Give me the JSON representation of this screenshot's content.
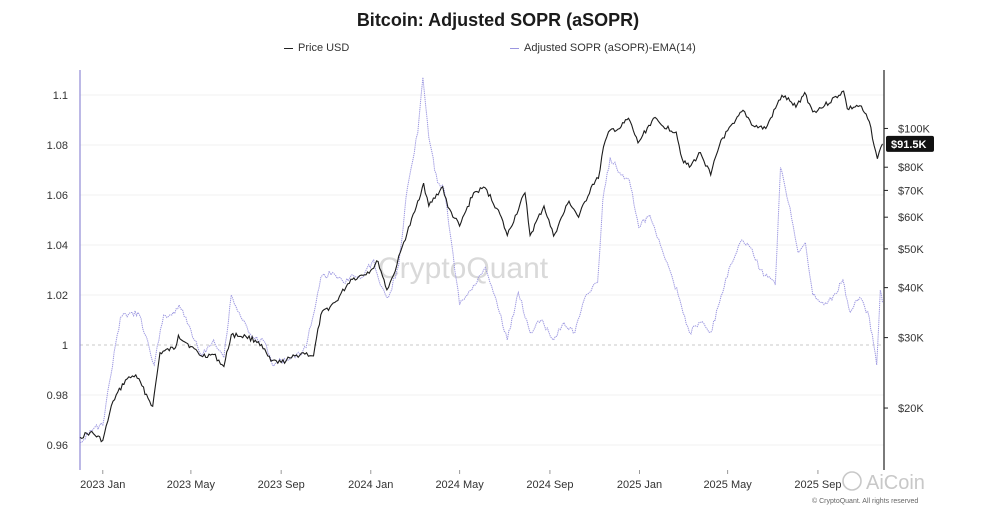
{
  "chart_data": {
    "type": "line",
    "title": "Bitcoin: Adjusted SOPR (aSOPR)",
    "legend": {
      "position": "top-center"
    },
    "series": [
      {
        "name": "Price USD",
        "axis": "right",
        "color": "#222222"
      },
      {
        "name": "Adjusted SOPR (aSOPR)-EMA(14)",
        "axis": "left",
        "color": "#9b96e0"
      }
    ],
    "x_ticks": [
      "2023 Jan",
      "2023 May",
      "2023 Sep",
      "2024 Jan",
      "2024 May",
      "2024 Sep",
      "2025 Jan",
      "2025 May",
      "2025 Sep"
    ],
    "left_axis": {
      "ticks": [
        0.96,
        0.98,
        1,
        1.02,
        1.04,
        1.06,
        1.08,
        1.1
      ],
      "tick_labels": [
        "0.96",
        "0.98",
        "1",
        "1.02",
        "1.04",
        "1.06",
        "1.08",
        "1.1"
      ],
      "ylim": [
        0.95,
        1.11
      ],
      "reference_line": 1
    },
    "right_axis": {
      "scale": "log",
      "ticks": [
        20000,
        30000,
        40000,
        50000,
        60000,
        70000,
        80000,
        100000
      ],
      "tick_labels": [
        "$20K",
        "$30K",
        "$40K",
        "$50K",
        "$60K",
        "$70K",
        "$80K",
        "$100K"
      ],
      "current_label": "$91.5K"
    },
    "grid": true,
    "price": [
      [
        "2022-12-01",
        16900
      ],
      [
        "2022-12-15",
        17400
      ],
      [
        "2023-01-01",
        16600
      ],
      [
        "2023-01-15",
        20800
      ],
      [
        "2023-02-01",
        23500
      ],
      [
        "2023-02-15",
        24200
      ],
      [
        "2023-03-10",
        20200
      ],
      [
        "2023-03-20",
        27500
      ],
      [
        "2023-04-10",
        28300
      ],
      [
        "2023-04-14",
        30400
      ],
      [
        "2023-05-01",
        28500
      ],
      [
        "2023-05-15",
        27000
      ],
      [
        "2023-06-01",
        27200
      ],
      [
        "2023-06-15",
        25400
      ],
      [
        "2023-06-25",
        30500
      ],
      [
        "2023-07-15",
        30200
      ],
      [
        "2023-08-01",
        29300
      ],
      [
        "2023-08-18",
        26200
      ],
      [
        "2023-09-01",
        26000
      ],
      [
        "2023-09-15",
        26700
      ],
      [
        "2023-10-01",
        27500
      ],
      [
        "2023-10-15",
        27000
      ],
      [
        "2023-10-25",
        34200
      ],
      [
        "2023-11-15",
        37000
      ],
      [
        "2023-12-05",
        42000
      ],
      [
        "2023-12-15",
        42500
      ],
      [
        "2024-01-01",
        44200
      ],
      [
        "2024-01-11",
        46500
      ],
      [
        "2024-01-23",
        39500
      ],
      [
        "2024-02-01",
        43000
      ],
      [
        "2024-02-15",
        52000
      ],
      [
        "2024-03-01",
        62000
      ],
      [
        "2024-03-13",
        73000
      ],
      [
        "2024-03-20",
        64000
      ],
      [
        "2024-04-08",
        71500
      ],
      [
        "2024-04-15",
        63500
      ],
      [
        "2024-05-01",
        57000
      ],
      [
        "2024-05-20",
        69000
      ],
      [
        "2024-06-05",
        71000
      ],
      [
        "2024-06-25",
        61000
      ],
      [
        "2024-07-05",
        54000
      ],
      [
        "2024-07-29",
        69000
      ],
      [
        "2024-08-05",
        54000
      ],
      [
        "2024-08-24",
        64000
      ],
      [
        "2024-09-06",
        53800
      ],
      [
        "2024-09-27",
        65800
      ],
      [
        "2024-10-10",
        60000
      ],
      [
        "2024-10-29",
        72500
      ],
      [
        "2024-11-06",
        75000
      ],
      [
        "2024-11-13",
        90000
      ],
      [
        "2024-11-22",
        99000
      ],
      [
        "2024-12-05",
        100000
      ],
      [
        "2024-12-17",
        106000
      ],
      [
        "2024-12-30",
        92000
      ],
      [
        "2025-01-20",
        106000
      ],
      [
        "2025-01-31",
        102000
      ],
      [
        "2025-02-20",
        98000
      ],
      [
        "2025-02-28",
        84000
      ],
      [
        "2025-03-10",
        80000
      ],
      [
        "2025-03-25",
        87000
      ],
      [
        "2025-04-08",
        76500
      ],
      [
        "2025-04-22",
        93500
      ],
      [
        "2025-05-10",
        103000
      ],
      [
        "2025-05-22",
        111000
      ],
      [
        "2025-06-05",
        101500
      ],
      [
        "2025-06-22",
        100000
      ],
      [
        "2025-07-14",
        121000
      ],
      [
        "2025-07-25",
        117000
      ],
      [
        "2025-08-02",
        113000
      ],
      [
        "2025-08-14",
        123000
      ],
      [
        "2025-08-25",
        110000
      ],
      [
        "2025-09-10",
        114000
      ],
      [
        "2025-10-06",
        124000
      ],
      [
        "2025-10-11",
        112000
      ],
      [
        "2025-10-28",
        114000
      ],
      [
        "2025-11-10",
        104000
      ],
      [
        "2025-11-21",
        84000
      ],
      [
        "2025-11-28",
        91500
      ]
    ],
    "asopr_ema14": [
      [
        "2022-12-01",
        0.961
      ],
      [
        "2022-12-15",
        0.966
      ],
      [
        "2023-01-01",
        0.968
      ],
      [
        "2023-01-10",
        0.985
      ],
      [
        "2023-01-25",
        1.011
      ],
      [
        "2023-02-10",
        1.013
      ],
      [
        "2023-02-20",
        1.012
      ],
      [
        "2023-03-12",
        0.992
      ],
      [
        "2023-03-25",
        1.012
      ],
      [
        "2023-04-05",
        1.012
      ],
      [
        "2023-04-15",
        1.016
      ],
      [
        "2023-05-01",
        1.006
      ],
      [
        "2023-05-15",
        0.996
      ],
      [
        "2023-06-01",
        1.002
      ],
      [
        "2023-06-15",
        0.995
      ],
      [
        "2023-06-25",
        1.02
      ],
      [
        "2023-07-10",
        1.01
      ],
      [
        "2023-07-25",
        1.003
      ],
      [
        "2023-08-10",
        1.001
      ],
      [
        "2023-08-20",
        0.992
      ],
      [
        "2023-09-01",
        0.994
      ],
      [
        "2023-09-20",
        0.995
      ],
      [
        "2023-10-05",
        0.999
      ],
      [
        "2023-10-25",
        1.027
      ],
      [
        "2023-11-10",
        1.029
      ],
      [
        "2023-11-25",
        1.025
      ],
      [
        "2023-12-08",
        1.028
      ],
      [
        "2023-12-20",
        1.027
      ],
      [
        "2024-01-05",
        1.034
      ],
      [
        "2024-01-12",
        1.026
      ],
      [
        "2024-01-25",
        1.019
      ],
      [
        "2024-02-08",
        1.032
      ],
      [
        "2024-02-20",
        1.063
      ],
      [
        "2024-03-05",
        1.085
      ],
      [
        "2024-03-12",
        1.107
      ],
      [
        "2024-03-20",
        1.083
      ],
      [
        "2024-04-01",
        1.065
      ],
      [
        "2024-04-10",
        1.062
      ],
      [
        "2024-04-20",
        1.041
      ],
      [
        "2024-05-01",
        1.016
      ],
      [
        "2024-05-20",
        1.024
      ],
      [
        "2024-06-05",
        1.031
      ],
      [
        "2024-06-20",
        1.018
      ],
      [
        "2024-07-05",
        1.002
      ],
      [
        "2024-07-20",
        1.021
      ],
      [
        "2024-08-05",
        1.005
      ],
      [
        "2024-08-20",
        1.01
      ],
      [
        "2024-09-06",
        1.002
      ],
      [
        "2024-09-20",
        1.009
      ],
      [
        "2024-10-05",
        1.005
      ],
      [
        "2024-10-20",
        1.02
      ],
      [
        "2024-11-05",
        1.025
      ],
      [
        "2024-11-12",
        1.058
      ],
      [
        "2024-11-22",
        1.075
      ],
      [
        "2024-12-05",
        1.069
      ],
      [
        "2024-12-18",
        1.066
      ],
      [
        "2024-12-31",
        1.047
      ],
      [
        "2025-01-15",
        1.052
      ],
      [
        "2025-01-25",
        1.043
      ],
      [
        "2025-02-10",
        1.031
      ],
      [
        "2025-02-25",
        1.018
      ],
      [
        "2025-03-10",
        1.005
      ],
      [
        "2025-03-25",
        1.009
      ],
      [
        "2025-04-08",
        1.005
      ],
      [
        "2025-04-20",
        1.017
      ],
      [
        "2025-05-05",
        1.032
      ],
      [
        "2025-05-20",
        1.042
      ],
      [
        "2025-06-01",
        1.039
      ],
      [
        "2025-06-15",
        1.03
      ],
      [
        "2025-06-25",
        1.027
      ],
      [
        "2025-07-05",
        1.024
      ],
      [
        "2025-07-12",
        1.071
      ],
      [
        "2025-07-25",
        1.055
      ],
      [
        "2025-08-05",
        1.037
      ],
      [
        "2025-08-15",
        1.041
      ],
      [
        "2025-08-25",
        1.02
      ],
      [
        "2025-09-05",
        1.017
      ],
      [
        "2025-09-20",
        1.018
      ],
      [
        "2025-10-05",
        1.026
      ],
      [
        "2025-10-15",
        1.013
      ],
      [
        "2025-10-28",
        1.019
      ],
      [
        "2025-11-10",
        1.011
      ],
      [
        "2025-11-20",
        0.992
      ],
      [
        "2025-11-25",
        1.022
      ],
      [
        "2025-11-28",
        1.017
      ]
    ]
  },
  "watermark": "CryptoQuant",
  "footer": {
    "copyright": "© CryptoQuant. All rights reserved",
    "brand_logo": "AiCoin"
  }
}
